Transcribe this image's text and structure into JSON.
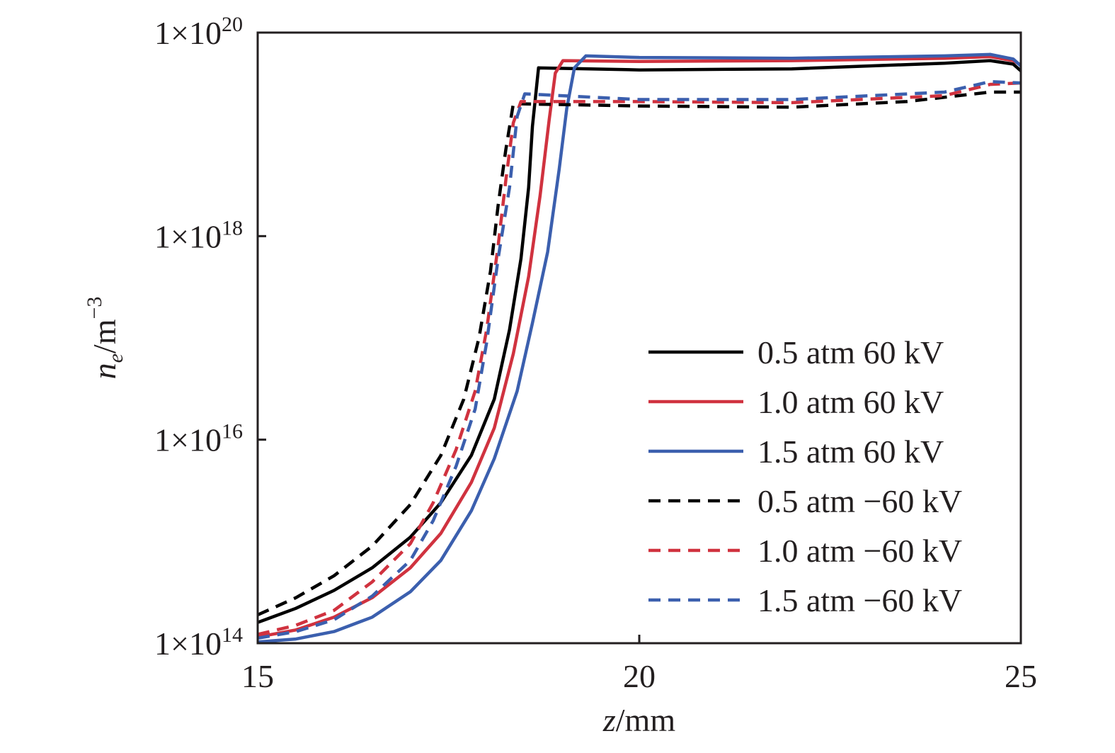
{
  "chart_data": {
    "type": "line",
    "xlabel_var": "z",
    "xlabel_unit": "/mm",
    "ylabel_var": "n",
    "ylabel_sub": "e",
    "ylabel_unit": "/m",
    "ylabel_exp": "−3",
    "xlim": [
      15,
      25
    ],
    "ylim": [
      100000000000000.0,
      1e+20
    ],
    "yscale": "log",
    "grid": false,
    "legend_position": "lower-right",
    "x_ticks": [
      {
        "value": 15,
        "label": "15"
      },
      {
        "value": 20,
        "label": "20"
      },
      {
        "value": 25,
        "label": "25"
      }
    ],
    "y_ticks": [
      {
        "value": 100000000000000.0,
        "mantissa": "1×10",
        "exp": "14"
      },
      {
        "value": 1e+16,
        "mantissa": "1×10",
        "exp": "16"
      },
      {
        "value": 1e+18,
        "mantissa": "1×10",
        "exp": "18"
      },
      {
        "value": 1e+20,
        "mantissa": "1×10",
        "exp": "20"
      }
    ],
    "series": [
      {
        "name": "0.5 atm 60 kV",
        "color": "#000000",
        "dash": "solid",
        "x": [
          15.0,
          15.5,
          16.0,
          16.5,
          17.0,
          17.4,
          17.8,
          18.1,
          18.3,
          18.45,
          18.55,
          18.6,
          18.68,
          20.0,
          22.0,
          24.0,
          24.6,
          24.9,
          25.0
        ],
        "y": [
          160000000000000.0,
          220000000000000.0,
          330000000000000.0,
          550000000000000.0,
          1100000000000000.0,
          2400000000000000.0,
          7000000000000000.0,
          2.5e+16,
          1.2e+17,
          6e+17,
          3e+18,
          1.2e+19,
          4.5e+19,
          4.3e+19,
          4.4e+19,
          5e+19,
          5.3e+19,
          4.9e+19,
          4.2e+19
        ]
      },
      {
        "name": "1.0 atm 60 kV",
        "color": "#d0323f",
        "dash": "solid",
        "x": [
          15.0,
          15.5,
          16.0,
          16.5,
          17.0,
          17.4,
          17.8,
          18.1,
          18.35,
          18.55,
          18.7,
          18.82,
          18.9,
          19.0,
          20.0,
          22.0,
          24.0,
          24.6,
          24.9,
          25.0
        ],
        "y": [
          115000000000000.0,
          135000000000000.0,
          180000000000000.0,
          280000000000000.0,
          550000000000000.0,
          1200000000000000.0,
          3800000000000000.0,
          1.3e+16,
          7e+16,
          4e+17,
          2.5e+18,
          1.4e+19,
          4e+19,
          5.3e+19,
          5.2e+19,
          5.3e+19,
          5.6e+19,
          5.8e+19,
          5.3e+19,
          4.8e+19
        ]
      },
      {
        "name": "1.5 atm 60 kV",
        "color": "#3b5fae",
        "dash": "solid",
        "x": [
          15.0,
          15.5,
          16.0,
          16.5,
          17.0,
          17.4,
          17.8,
          18.1,
          18.4,
          18.6,
          18.8,
          18.95,
          19.05,
          19.15,
          19.3,
          20.0,
          22.0,
          24.0,
          24.6,
          24.9,
          25.0
        ],
        "y": [
          103000000000000.0,
          110000000000000.0,
          130000000000000.0,
          180000000000000.0,
          320000000000000.0,
          650000000000000.0,
          2000000000000000.0,
          6500000000000000.0,
          3e+16,
          1.4e+17,
          7e+17,
          4.5e+18,
          1.8e+19,
          4.5e+19,
          5.9e+19,
          5.7e+19,
          5.6e+19,
          5.9e+19,
          6.1e+19,
          5.5e+19,
          4.7e+19
        ]
      },
      {
        "name": "0.5 atm −60 kV",
        "color": "#000000",
        "dash": "dashed",
        "x": [
          15.0,
          15.5,
          16.0,
          16.5,
          17.0,
          17.4,
          17.7,
          17.9,
          18.05,
          18.15,
          18.25,
          18.35,
          20.0,
          22.0,
          23.5,
          24.6,
          25.0
        ],
        "y": [
          190000000000000.0,
          280000000000000.0,
          460000000000000.0,
          900000000000000.0,
          2300000000000000.0,
          7000000000000000.0,
          2.5e+16,
          1e+17,
          4.5e+17,
          2e+18,
          7e+18,
          2e+19,
          1.9e+19,
          1.85e+19,
          2.1e+19,
          2.6e+19,
          2.6e+19
        ]
      },
      {
        "name": "1.0 atm −60 kV",
        "color": "#d0323f",
        "dash": "dashed",
        "x": [
          15.0,
          15.5,
          16.0,
          16.5,
          17.0,
          17.3,
          17.6,
          17.85,
          18.0,
          18.15,
          18.25,
          18.35,
          18.45,
          20.0,
          22.0,
          24.0,
          24.6,
          25.0
        ],
        "y": [
          122000000000000.0,
          150000000000000.0,
          210000000000000.0,
          400000000000000.0,
          950000000000000.0,
          2400000000000000.0,
          8000000000000000.0,
          3e+16,
          1.2e+17,
          8e+17,
          3.5e+18,
          1.3e+19,
          2.1e+19,
          2.1e+19,
          2.05e+19,
          2.4e+19,
          3.1e+19,
          3.2e+19
        ]
      },
      {
        "name": "1.5 atm −60 kV",
        "color": "#3b5fae",
        "dash": "dashed",
        "x": [
          15.0,
          15.5,
          16.0,
          16.5,
          17.0,
          17.3,
          17.6,
          17.85,
          18.0,
          18.15,
          18.3,
          18.4,
          18.5,
          20.0,
          22.0,
          24.0,
          24.6,
          25.0
        ],
        "y": [
          112000000000000.0,
          130000000000000.0,
          170000000000000.0,
          290000000000000.0,
          650000000000000.0,
          1600000000000000.0,
          5500000000000000.0,
          2e+16,
          9e+16,
          6e+17,
          3e+18,
          1.5e+19,
          2.5e+19,
          2.2e+19,
          2.2e+19,
          2.6e+19,
          3.3e+19,
          3.2e+19
        ]
      }
    ]
  }
}
